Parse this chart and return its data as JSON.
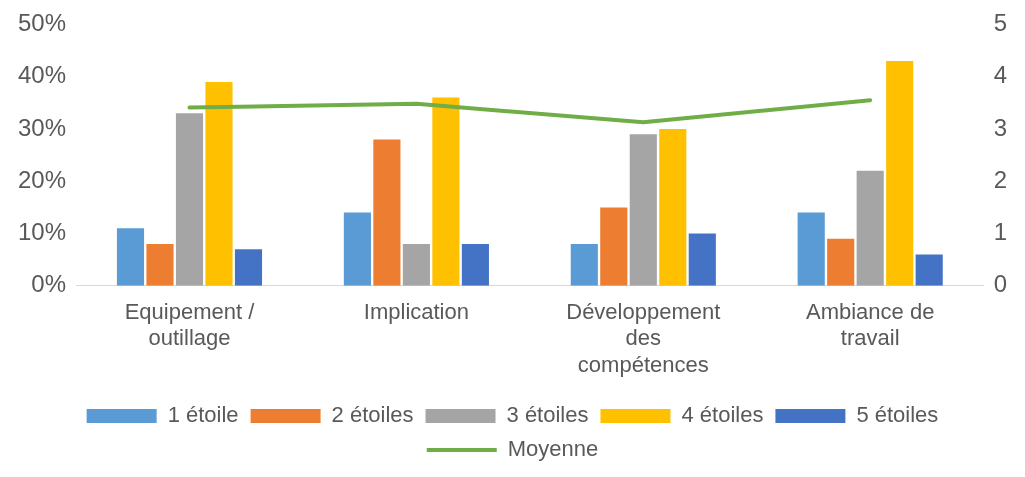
{
  "chart_data": {
    "type": "bar",
    "categories": [
      "Equipement / outillage",
      "Implication",
      "Développement des compétences",
      "Ambiance de travail"
    ],
    "series": [
      {
        "name": "1 étoile",
        "color": "#5b9bd5",
        "values": [
          11,
          14,
          8,
          14
        ]
      },
      {
        "name": "2 étoiles",
        "color": "#ed7d31",
        "values": [
          8,
          28,
          15,
          9
        ]
      },
      {
        "name": "3 étoiles",
        "color": "#a5a5a5",
        "values": [
          33,
          8,
          29,
          22
        ]
      },
      {
        "name": "4 étoiles",
        "color": "#ffc000",
        "values": [
          39,
          36,
          30,
          43
        ]
      },
      {
        "name": "5 étoiles",
        "color": "#4472c4",
        "values": [
          7,
          8,
          10,
          6
        ]
      },
      {
        "name": "Moyenne",
        "color": "#70ad47",
        "type": "line",
        "axis": "y2",
        "marker": "none",
        "values": [
          3.41,
          3.48,
          3.13,
          3.55
        ]
      }
    ],
    "ylim": [
      0,
      50
    ],
    "yticks": [
      {
        "value": 0,
        "label": "0%"
      },
      {
        "value": 10,
        "label": "10%"
      },
      {
        "value": 20,
        "label": "20%"
      },
      {
        "value": 30,
        "label": "30%"
      },
      {
        "value": 40,
        "label": "40%"
      },
      {
        "value": 50,
        "label": "50%"
      }
    ],
    "y2lim": [
      0,
      5
    ],
    "y2ticks": [
      0,
      1,
      2,
      3,
      4,
      5
    ],
    "grid": false,
    "legend": "bottom"
  }
}
